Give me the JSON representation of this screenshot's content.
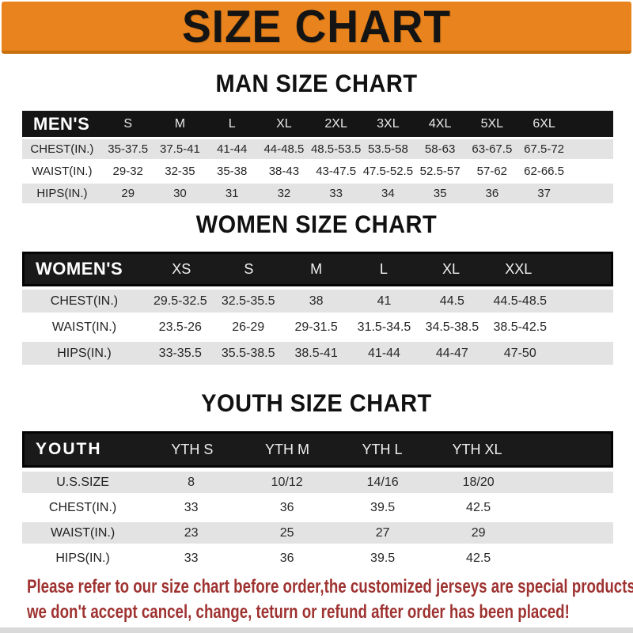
{
  "banner": {
    "title": "SIZE CHART",
    "bg_color": "#E8831D"
  },
  "sections": [
    {
      "heading": "MAN SIZE CHART",
      "table": {
        "label": "MEN'S",
        "columns": [
          "S",
          "M",
          "L",
          "XL",
          "2XL",
          "3XL",
          "4XL",
          "5XL",
          "6XL"
        ],
        "rows": [
          {
            "label": "CHEST(IN.)",
            "values": [
              "35-37.5",
              "37.5-41",
              "41-44",
              "44-48.5",
              "48.5-53.5",
              "53.5-58",
              "58-63",
              "63-67.5",
              "67.5-72"
            ]
          },
          {
            "label": "WAIST(IN.)",
            "values": [
              "29-32",
              "32-35",
              "35-38",
              "38-43",
              "43-47.5",
              "47.5-52.5",
              "52.5-57",
              "57-62",
              "62-66.5"
            ]
          },
          {
            "label": "HIPS(IN.)",
            "values": [
              "29",
              "30",
              "31",
              "32",
              "33",
              "34",
              "35",
              "36",
              "37"
            ]
          }
        ]
      }
    },
    {
      "heading": "WOMEN SIZE CHART",
      "table": {
        "label": "WOMEN'S",
        "columns": [
          "XS",
          "S",
          "M",
          "L",
          "XL",
          "XXL"
        ],
        "rows": [
          {
            "label": "CHEST(IN.)",
            "values": [
              "29.5-32.5",
              "32.5-35.5",
              "38",
              "41",
              "44.5",
              "44.5-48.5"
            ]
          },
          {
            "label": "WAIST(IN.)",
            "values": [
              "23.5-26",
              "26-29",
              "29-31.5",
              "31.5-34.5",
              "34.5-38.5",
              "38.5-42.5"
            ]
          },
          {
            "label": "HIPS(IN.)",
            "values": [
              "33-35.5",
              "35.5-38.5",
              "38.5-41",
              "41-44",
              "44-47",
              "47-50"
            ]
          }
        ]
      }
    },
    {
      "heading": "YOUTH SIZE CHART",
      "table": {
        "label": "YOUTH",
        "columns": [
          "YTH S",
          "YTH M",
          "YTH L",
          "YTH XL"
        ],
        "rows": [
          {
            "label": "U.S.SIZE",
            "values": [
              "8",
              "10/12",
              "14/16",
              "18/20"
            ]
          },
          {
            "label": "CHEST(IN.)",
            "values": [
              "33",
              "36",
              "39.5",
              "42.5"
            ]
          },
          {
            "label": "WAIST(IN.)",
            "values": [
              "23",
              "25",
              "27",
              "29"
            ]
          },
          {
            "label": "HIPS(IN.)",
            "values": [
              "33",
              "36",
              "39.5",
              "42.5"
            ]
          }
        ]
      }
    }
  ],
  "footer": {
    "lines": [
      "Please refer to our size chart before order,the customized jerseys are special products,",
      "we don't accept cancel, change, teturn or refund after order has been placed!"
    ],
    "text_color": "#9E3331"
  }
}
